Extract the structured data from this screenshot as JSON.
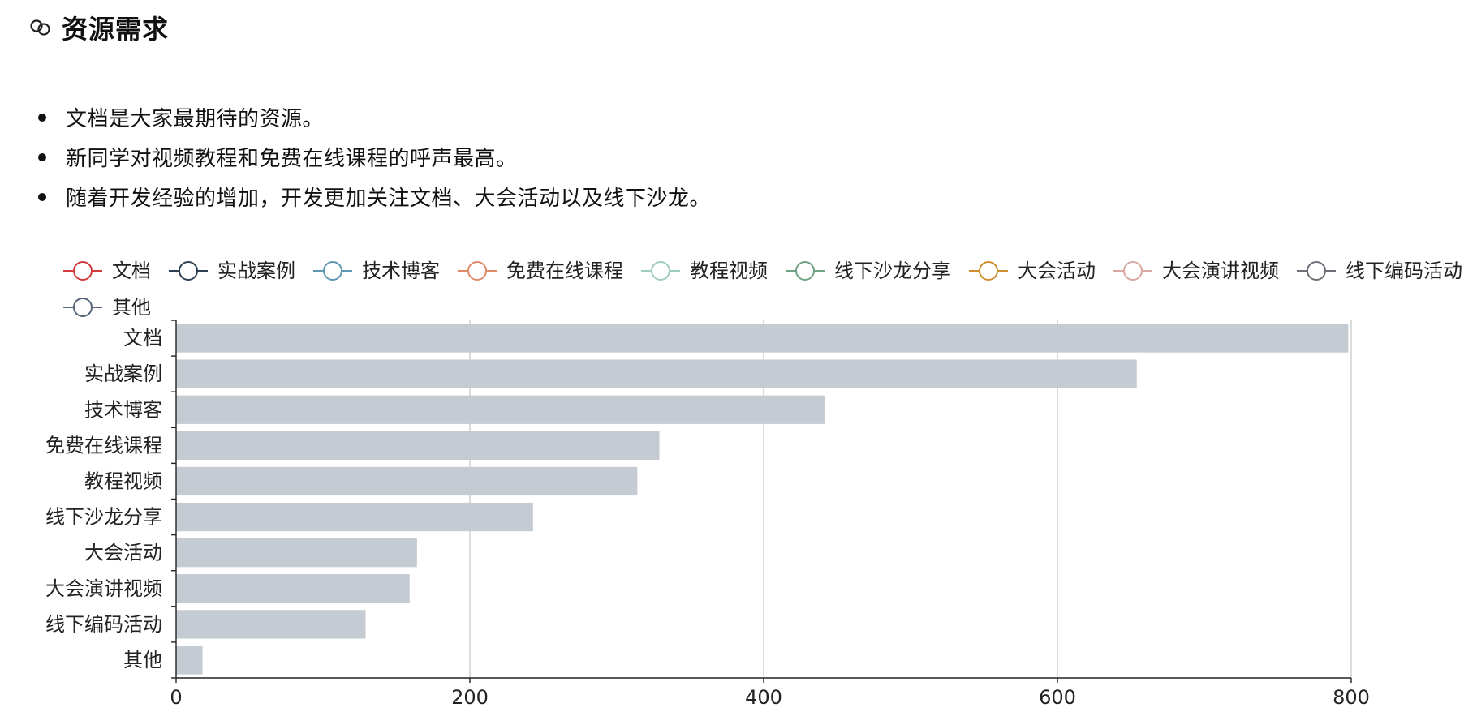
{
  "section": {
    "icon": "link-icon",
    "title": "资源需求"
  },
  "bullets": [
    "文档是大家最期待的资源。",
    "新同学对视频教程和免费在线课程的呼声最高。",
    "随着开发经验的增加，开发更加关注文档、大会活动以及线下沙龙。"
  ],
  "chart_data": {
    "type": "bar",
    "orientation": "horizontal",
    "categories": [
      "文档",
      "实战案例",
      "技术博客",
      "免费在线课程",
      "教程视频",
      "线下沙龙分享",
      "大会活动",
      "大会演讲视频",
      "线下编码活动",
      "其他"
    ],
    "values": [
      798,
      654,
      442,
      329,
      314,
      243,
      164,
      159,
      129,
      18
    ],
    "xlim": [
      0,
      800
    ],
    "xticks": [
      0,
      200,
      400,
      600,
      800
    ],
    "grid": true,
    "bar_color": "#c4cbd2",
    "legend": {
      "placement": "top-left",
      "entries": [
        {
          "name": "文档",
          "color": "#d13b3b"
        },
        {
          "name": "实战案例",
          "color": "#2e4154"
        },
        {
          "name": "技术博客",
          "color": "#5e98b2"
        },
        {
          "name": "免费在线课程",
          "color": "#e08a6b"
        },
        {
          "name": "教程视频",
          "color": "#9fcdbd"
        },
        {
          "name": "线下沙龙分享",
          "color": "#6fa185"
        },
        {
          "name": "大会活动",
          "color": "#cf8e2e"
        },
        {
          "name": "大会演讲视频",
          "color": "#d9a8a2"
        },
        {
          "name": "线下编码活动",
          "color": "#6c6f75"
        },
        {
          "name": "其他",
          "color": "#56657a"
        }
      ]
    }
  }
}
